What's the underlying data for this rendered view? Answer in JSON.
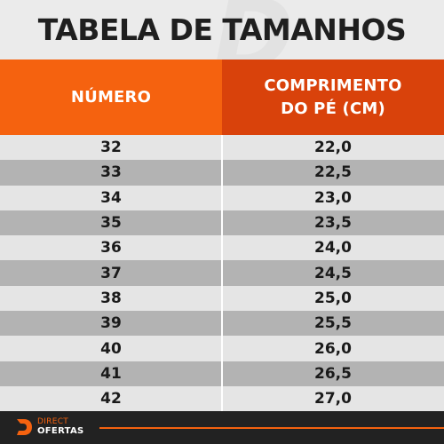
{
  "title": "TABELA DE TAMANHOS",
  "header": {
    "col1": "NÚMERO",
    "col2_line1": "COMPRIMENTO",
    "col2_line2": "DO PÉ (CM)"
  },
  "rows": [
    {
      "numero": "32",
      "comprimento": "22,0"
    },
    {
      "numero": "33",
      "comprimento": "22,5"
    },
    {
      "numero": "34",
      "comprimento": "23,0"
    },
    {
      "numero": "35",
      "comprimento": "23,5"
    },
    {
      "numero": "36",
      "comprimento": "24,0"
    },
    {
      "numero": "37",
      "comprimento": "24,5"
    },
    {
      "numero": "38",
      "comprimento": "25,0"
    },
    {
      "numero": "39",
      "comprimento": "25,5"
    },
    {
      "numero": "40",
      "comprimento": "26,0"
    },
    {
      "numero": "41",
      "comprimento": "26,5"
    },
    {
      "numero": "42",
      "comprimento": "27,0"
    }
  ],
  "footer": {
    "brand_top": "DIRECT",
    "brand_bottom": "OFERTAS",
    "logo_icon": "direct-ofertas-logo-icon"
  },
  "colors": {
    "accent_orange": "#f5620f",
    "header_dark_orange": "#d9420b",
    "row_light": "#e5e5e5",
    "row_dark": "#b3b3b3",
    "footer_bg": "#222222"
  }
}
